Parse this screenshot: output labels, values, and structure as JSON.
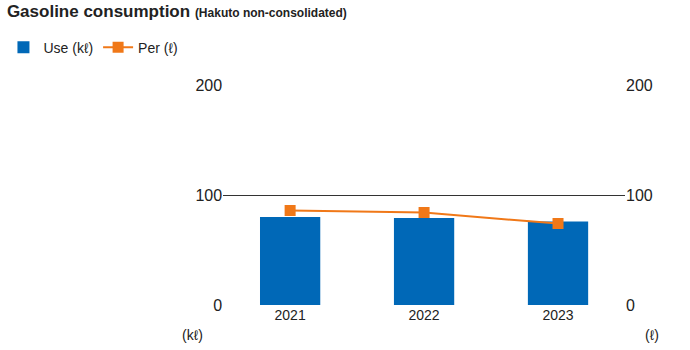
{
  "chart_data": {
    "type": "bar",
    "title": "Gasoline consumption",
    "subtitle": "(Hakuto non-consolidated)",
    "categories": [
      "2021",
      "2022",
      "2023"
    ],
    "series": [
      {
        "name": "Use (kℓ)",
        "type": "bar",
        "color": "#0068b7",
        "values": [
          80,
          79,
          76
        ]
      },
      {
        "name": "Per (ℓ)",
        "type": "line",
        "color": "#f07818",
        "marker": "square",
        "axis": "y2",
        "values": [
          86,
          84,
          74
        ]
      }
    ],
    "y_label": "(kℓ)",
    "y2_label": "(ℓ)",
    "ylim": [
      0,
      200
    ],
    "yticks": [
      0,
      100,
      200
    ],
    "y2lim": [
      0,
      200
    ],
    "y2ticks": [
      0,
      100,
      200
    ],
    "grid": true,
    "legend": "top left"
  }
}
